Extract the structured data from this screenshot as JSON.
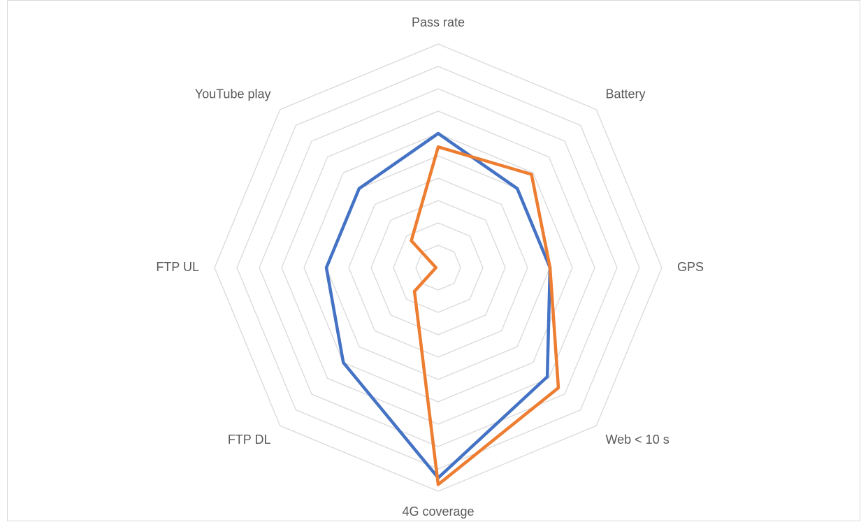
{
  "chart_data": {
    "type": "radar",
    "categories": [
      "Pass rate",
      "Battery",
      "GPS",
      "Web < 10 s",
      "4G coverage",
      "FTP DL",
      "FTP UL",
      "YouTube play"
    ],
    "series": [
      {
        "color": "#4472c4",
        "values": [
          6.0,
          5.0,
          5.0,
          6.9,
          9.4,
          6.0,
          5.0,
          5.0
        ]
      },
      {
        "color": "#ed7d31",
        "values": [
          5.4,
          5.9,
          5.0,
          7.6,
          9.7,
          1.5,
          0.1,
          1.7
        ]
      }
    ],
    "rlim": [
      0,
      10
    ],
    "rticks": [
      1,
      2,
      3,
      4,
      5,
      6,
      7,
      8,
      9,
      10
    ],
    "grid": true
  }
}
